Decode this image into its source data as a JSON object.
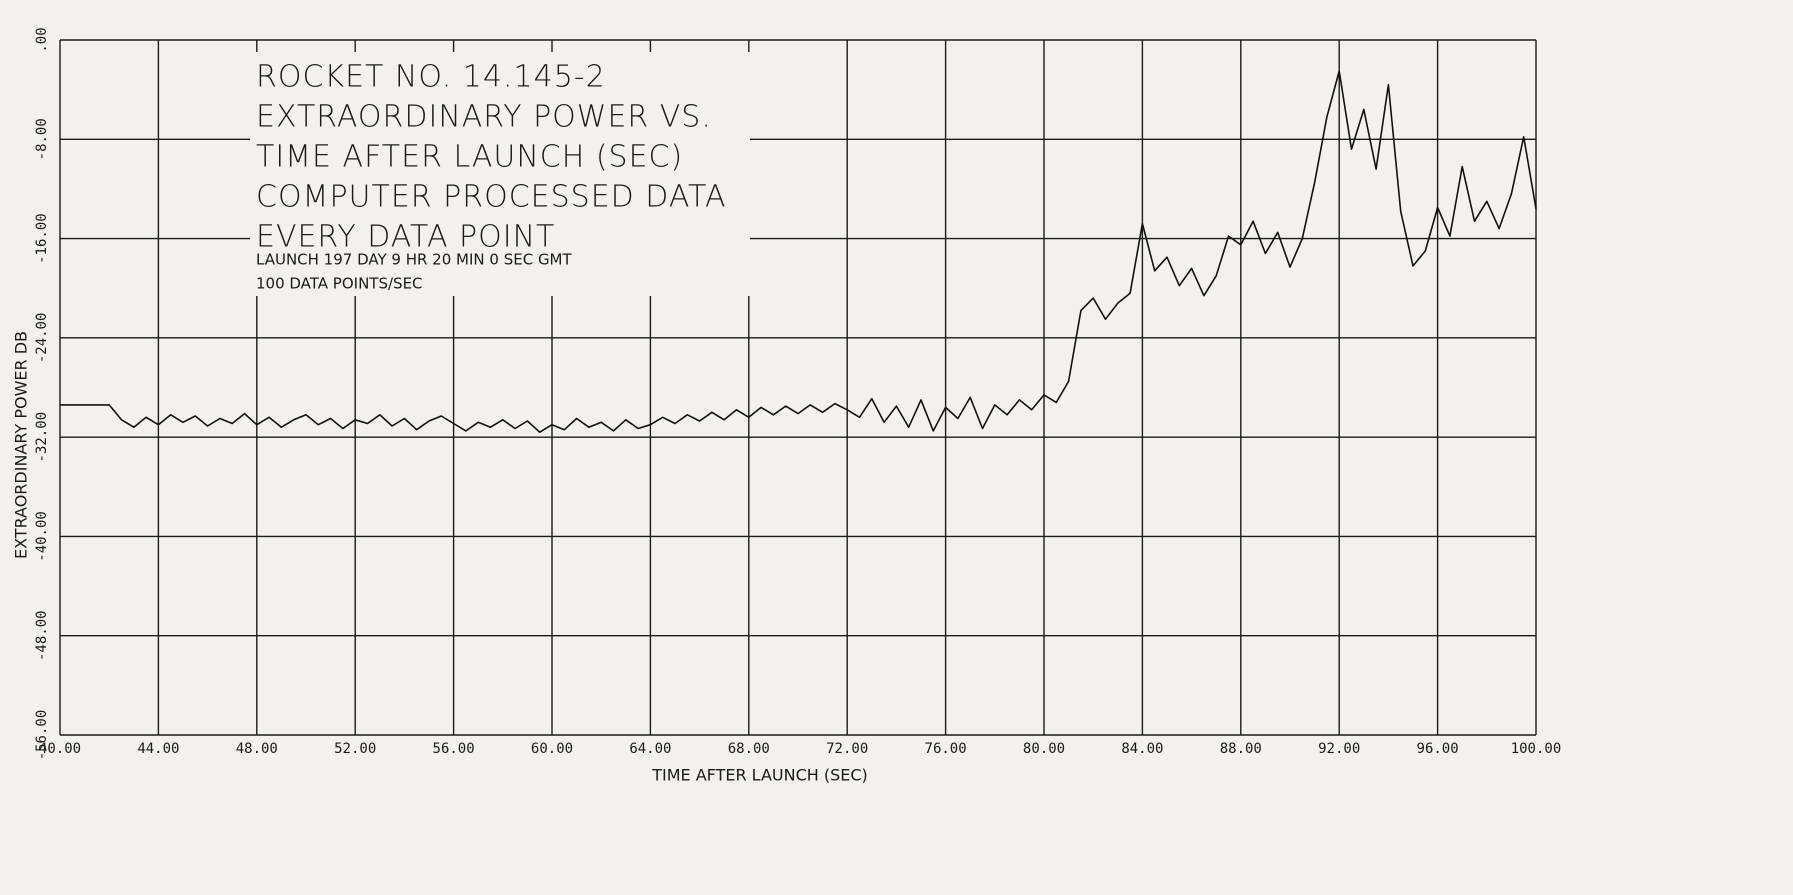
{
  "chart_data": {
    "type": "line",
    "title_lines": [
      "ROCKET NO. 14.145-2",
      "EXTRAORDINARY POWER VS.",
      "TIME AFTER LAUNCH (SEC)",
      "COMPUTER PROCESSED DATA",
      "EVERY DATA POINT"
    ],
    "annotations": [
      "LAUNCH 197 DAY 9 HR 20 MIN 0 SEC GMT",
      "100 DATA POINTS/SEC"
    ],
    "x_label": "TIME AFTER LAUNCH (SEC)",
    "y_label": "EXTRAORDINARY POWER DB",
    "color": "#111111",
    "grid": true,
    "xlim": [
      40,
      100
    ],
    "ylim": [
      -56,
      0
    ],
    "xticks": [
      {
        "value": 40,
        "label": "40.00"
      },
      {
        "value": 44,
        "label": "44.00"
      },
      {
        "value": 48,
        "label": "48.00"
      },
      {
        "value": 52,
        "label": "52.00"
      },
      {
        "value": 56,
        "label": "56.00"
      },
      {
        "value": 60,
        "label": "60.00"
      },
      {
        "value": 64,
        "label": "64.00"
      },
      {
        "value": 68,
        "label": "68.00"
      },
      {
        "value": 72,
        "label": "72.00"
      },
      {
        "value": 76,
        "label": "76.00"
      },
      {
        "value": 80,
        "label": "80.00"
      },
      {
        "value": 84,
        "label": "84.00"
      },
      {
        "value": 88,
        "label": "88.00"
      },
      {
        "value": 92,
        "label": "92.00"
      },
      {
        "value": 96,
        "label": "96.00"
      },
      {
        "value": 100,
        "label": "100.00"
      }
    ],
    "yticks": [
      {
        "value": -56,
        "label": "-56.00"
      },
      {
        "value": -48,
        "label": "-48.00"
      },
      {
        "value": -40,
        "label": "-40.00"
      },
      {
        "value": -32,
        "label": "-32.00"
      },
      {
        "value": -24,
        "label": "-24.00"
      },
      {
        "value": -16,
        "label": "-16.00"
      },
      {
        "value": -8,
        "label": "-8.00"
      },
      {
        "value": 0,
        "label": ".00"
      }
    ],
    "x": [
      40,
      40.5,
      41,
      41.5,
      42,
      42.5,
      43,
      43.5,
      44,
      44.5,
      45,
      45.5,
      46,
      46.5,
      47,
      47.5,
      48,
      48.5,
      49,
      49.5,
      50,
      50.5,
      51,
      51.5,
      52,
      52.5,
      53,
      53.5,
      54,
      54.5,
      55,
      55.5,
      56,
      56.5,
      57,
      57.5,
      58,
      58.5,
      59,
      59.5,
      60,
      60.5,
      61,
      61.5,
      62,
      62.5,
      63,
      63.5,
      64,
      64.5,
      65,
      65.5,
      66,
      66.5,
      67,
      67.5,
      68,
      68.5,
      69,
      69.5,
      70,
      70.5,
      71,
      71.5,
      72,
      72.5,
      73,
      73.5,
      74,
      74.5,
      75,
      75.5,
      76,
      76.5,
      77,
      77.5,
      78,
      78.5,
      79,
      79.5,
      80,
      80.5,
      81,
      81.5,
      82,
      82.5,
      83,
      83.5,
      84,
      84.5,
      85,
      85.5,
      86,
      86.5,
      87,
      87.5,
      88,
      88.5,
      89,
      89.5,
      90,
      90.5,
      91,
      91.5,
      92,
      92.5,
      93,
      93.5,
      94,
      94.5,
      95,
      95.5,
      96,
      96.5,
      97,
      97.5,
      98,
      98.5,
      99,
      99.5,
      100
    ],
    "values": [
      -29.4,
      -29.4,
      -29.4,
      -29.4,
      -29.4,
      -30.6,
      -31.2,
      -30.4,
      -31.0,
      -30.2,
      -30.8,
      -30.3,
      -31.1,
      -30.5,
      -30.9,
      -30.1,
      -31.0,
      -30.4,
      -31.2,
      -30.6,
      -30.2,
      -31.0,
      -30.5,
      -31.3,
      -30.6,
      -30.9,
      -30.2,
      -31.1,
      -30.5,
      -31.4,
      -30.7,
      -30.3,
      -30.9,
      -31.5,
      -30.8,
      -31.2,
      -30.6,
      -31.3,
      -30.7,
      -31.6,
      -31.0,
      -31.4,
      -30.5,
      -31.2,
      -30.8,
      -31.5,
      -30.6,
      -31.3,
      -31.0,
      -30.4,
      -30.9,
      -30.2,
      -30.7,
      -30.0,
      -30.6,
      -29.8,
      -30.4,
      -29.6,
      -30.2,
      -29.5,
      -30.1,
      -29.4,
      -30.0,
      -29.3,
      -29.8,
      -30.4,
      -28.9,
      -30.8,
      -29.5,
      -31.2,
      -29.0,
      -31.5,
      -29.6,
      -30.5,
      -28.8,
      -31.3,
      -29.4,
      -30.2,
      -29.0,
      -29.8,
      -28.6,
      -29.2,
      -27.5,
      -21.8,
      -20.8,
      -22.5,
      -21.2,
      -20.4,
      -14.8,
      -18.6,
      -17.5,
      -19.8,
      -18.4,
      -20.6,
      -19.0,
      -15.8,
      -16.5,
      -14.6,
      -17.2,
      -15.5,
      -18.3,
      -16.0,
      -11.5,
      -6.2,
      -2.5,
      -8.8,
      -5.6,
      -10.4,
      -3.6,
      -13.8,
      -18.2,
      -17.0,
      -13.5,
      -15.8,
      -10.2,
      -14.6,
      -13.0,
      -15.2,
      -12.4,
      -7.8,
      -13.6
    ]
  }
}
